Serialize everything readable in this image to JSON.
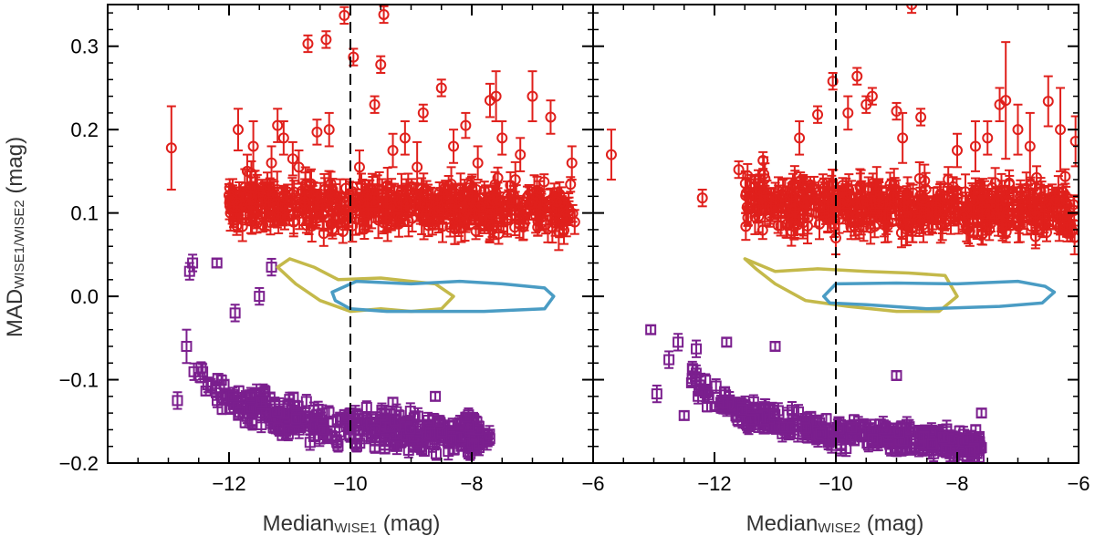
{
  "chart_data": {
    "type": "scatter",
    "layout": "two-panel",
    "ylabel": {
      "main": "MAD",
      "sub": "WISE1/WISE2",
      "unit": "(mag)"
    },
    "ylim": [
      -0.2,
      0.35
    ],
    "yticks": [
      -0.2,
      -0.1,
      0.0,
      0.1,
      0.2,
      0.3
    ],
    "ytick_labels": [
      "−0.2",
      "−0.1",
      "0.0",
      "0.1",
      "0.2",
      "0.3"
    ],
    "xlim": [
      -14,
      -6
    ],
    "xticks": [
      -12,
      -10,
      -8,
      -6
    ],
    "xtick_labels": [
      "−12",
      "−10",
      "−8",
      "−6"
    ],
    "colors": {
      "red": "#e0201c",
      "purple": "#7b1f8e",
      "olive": "#c4b94a",
      "blue": "#4a9cc4"
    },
    "panels": [
      {
        "name": "WISE1",
        "xlabel": {
          "main": "Median",
          "sub": "WISE1",
          "unit": "(mag)"
        },
        "vline_x": -10,
        "red_points": [
          {
            "x": -12.95,
            "y": 0.178,
            "err": 0.05
          },
          {
            "x": -11.85,
            "y": 0.2,
            "err": 0.025
          },
          {
            "x": -11.7,
            "y": 0.15,
            "err": 0.02
          },
          {
            "x": -11.65,
            "y": 0.13,
            "err": 0.02
          },
          {
            "x": -11.6,
            "y": 0.18,
            "err": 0.03
          },
          {
            "x": -11.3,
            "y": 0.16,
            "err": 0.02
          },
          {
            "x": -11.2,
            "y": 0.205,
            "err": 0.02
          },
          {
            "x": -11.1,
            "y": 0.19,
            "err": 0.02
          },
          {
            "x": -10.95,
            "y": 0.165,
            "err": 0.02
          },
          {
            "x": -10.85,
            "y": 0.155,
            "err": 0.02
          },
          {
            "x": -10.7,
            "y": 0.303,
            "err": 0.01
          },
          {
            "x": -10.55,
            "y": 0.197,
            "err": 0.015
          },
          {
            "x": -10.4,
            "y": 0.308,
            "err": 0.01
          },
          {
            "x": -10.35,
            "y": 0.2,
            "err": 0.02
          },
          {
            "x": -10.1,
            "y": 0.337,
            "err": 0.01
          },
          {
            "x": -9.95,
            "y": 0.287,
            "err": 0.01
          },
          {
            "x": -9.85,
            "y": 0.155,
            "err": 0.02
          },
          {
            "x": -9.6,
            "y": 0.23,
            "err": 0.01
          },
          {
            "x": -9.5,
            "y": 0.278,
            "err": 0.01
          },
          {
            "x": -9.45,
            "y": 0.338,
            "err": 0.01
          },
          {
            "x": -9.3,
            "y": 0.175,
            "err": 0.02
          },
          {
            "x": -9.1,
            "y": 0.19,
            "err": 0.02
          },
          {
            "x": -8.9,
            "y": 0.155,
            "err": 0.03
          },
          {
            "x": -8.8,
            "y": 0.22,
            "err": 0.01
          },
          {
            "x": -8.5,
            "y": 0.25,
            "err": 0.01
          },
          {
            "x": -8.3,
            "y": 0.18,
            "err": 0.02
          },
          {
            "x": -8.1,
            "y": 0.205,
            "err": 0.015
          },
          {
            "x": -7.9,
            "y": 0.16,
            "err": 0.02
          },
          {
            "x": -7.7,
            "y": 0.235,
            "err": 0.02
          },
          {
            "x": -7.6,
            "y": 0.24,
            "err": 0.03
          },
          {
            "x": -7.5,
            "y": 0.19,
            "err": 0.02
          },
          {
            "x": -7.2,
            "y": 0.17,
            "err": 0.02
          },
          {
            "x": -7.0,
            "y": 0.24,
            "err": 0.03
          },
          {
            "x": -6.7,
            "y": 0.215,
            "err": 0.02
          },
          {
            "x": -6.35,
            "y": 0.16,
            "err": 0.02
          }
        ],
        "purple_points": [
          {
            "x": -12.85,
            "y": -0.125,
            "err": 0.01
          },
          {
            "x": -12.7,
            "y": -0.06,
            "err": 0.02
          },
          {
            "x": -12.65,
            "y": 0.03,
            "err": 0.01
          },
          {
            "x": -12.6,
            "y": 0.04,
            "err": 0.01
          },
          {
            "x": -12.2,
            "y": 0.04,
            "err": 0.005
          },
          {
            "x": -11.9,
            "y": -0.02,
            "err": 0.01
          },
          {
            "x": -11.5,
            "y": 0.0,
            "err": 0.01
          },
          {
            "x": -11.3,
            "y": 0.035,
            "err": 0.01
          },
          {
            "x": -9.3,
            "y": -0.127,
            "err": 0.005
          },
          {
            "x": -8.6,
            "y": -0.12,
            "err": 0.005
          },
          {
            "x": -8.1,
            "y": -0.145,
            "err": 0.005
          }
        ],
        "red_cloud": {
          "x_range": [
            -12.0,
            -6.3
          ],
          "y_center": 0.112,
          "y_spread": 0.03
        },
        "purple_cloud": {
          "x_range": [
            -12.6,
            -7.7
          ],
          "y_center": -0.12,
          "y_spread": 0.06
        },
        "contour_olive": [
          [
            -11.0,
            0.045
          ],
          [
            -10.6,
            0.035
          ],
          [
            -10.2,
            0.02
          ],
          [
            -9.5,
            0.022
          ],
          [
            -9.0,
            0.018
          ],
          [
            -8.6,
            0.015
          ],
          [
            -8.3,
            0.0
          ],
          [
            -8.5,
            -0.015
          ],
          [
            -9.0,
            -0.018
          ],
          [
            -9.5,
            -0.015
          ],
          [
            -10.0,
            -0.018
          ],
          [
            -10.5,
            -0.005
          ],
          [
            -10.9,
            0.015
          ],
          [
            -11.2,
            0.035
          ]
        ],
        "contour_blue": [
          [
            -10.3,
            0.005
          ],
          [
            -9.9,
            0.018
          ],
          [
            -9.0,
            0.015
          ],
          [
            -8.2,
            0.018
          ],
          [
            -7.5,
            0.015
          ],
          [
            -6.8,
            0.01
          ],
          [
            -6.65,
            0.0
          ],
          [
            -6.8,
            -0.015
          ],
          [
            -7.8,
            -0.018
          ],
          [
            -8.7,
            -0.018
          ],
          [
            -9.4,
            -0.018
          ],
          [
            -10.0,
            -0.015
          ],
          [
            -10.25,
            -0.005
          ]
        ]
      },
      {
        "name": "WISE2",
        "xlabel": {
          "main": "Median",
          "sub": "WISE2",
          "unit": "(mag)"
        },
        "vline_x": -10,
        "red_points": [
          {
            "x": -13.7,
            "y": 0.17,
            "err": 0.03
          },
          {
            "x": -12.2,
            "y": 0.118,
            "err": 0.01
          },
          {
            "x": -11.6,
            "y": 0.152,
            "err": 0.01
          },
          {
            "x": -11.2,
            "y": 0.163,
            "err": 0.01
          },
          {
            "x": -10.6,
            "y": 0.19,
            "err": 0.02
          },
          {
            "x": -10.3,
            "y": 0.218,
            "err": 0.01
          },
          {
            "x": -10.05,
            "y": 0.258,
            "err": 0.01
          },
          {
            "x": -9.8,
            "y": 0.22,
            "err": 0.02
          },
          {
            "x": -9.65,
            "y": 0.264,
            "err": 0.01
          },
          {
            "x": -9.5,
            "y": 0.23,
            "err": 0.01
          },
          {
            "x": -9.4,
            "y": 0.24,
            "err": 0.01
          },
          {
            "x": -9.0,
            "y": 0.222,
            "err": 0.01
          },
          {
            "x": -8.9,
            "y": 0.19,
            "err": 0.03
          },
          {
            "x": -8.75,
            "y": 0.35,
            "err": 0.01
          },
          {
            "x": -8.6,
            "y": 0.215,
            "err": 0.01
          },
          {
            "x": -8.0,
            "y": 0.175,
            "err": 0.02
          },
          {
            "x": -7.7,
            "y": 0.18,
            "err": 0.03
          },
          {
            "x": -7.5,
            "y": 0.19,
            "err": 0.02
          },
          {
            "x": -7.3,
            "y": 0.23,
            "err": 0.02
          },
          {
            "x": -7.2,
            "y": 0.235,
            "err": 0.07
          },
          {
            "x": -7.0,
            "y": 0.2,
            "err": 0.03
          },
          {
            "x": -6.8,
            "y": 0.18,
            "err": 0.04
          },
          {
            "x": -6.5,
            "y": 0.234,
            "err": 0.03
          },
          {
            "x": -6.3,
            "y": 0.2,
            "err": 0.05
          },
          {
            "x": -6.05,
            "y": 0.186,
            "err": 0.03
          }
        ],
        "purple_points": [
          {
            "x": -13.05,
            "y": -0.04,
            "err": 0.005
          },
          {
            "x": -12.95,
            "y": -0.117,
            "err": 0.01
          },
          {
            "x": -12.75,
            "y": -0.076,
            "err": 0.01
          },
          {
            "x": -12.6,
            "y": -0.055,
            "err": 0.01
          },
          {
            "x": -12.5,
            "y": -0.143,
            "err": 0.005
          },
          {
            "x": -12.3,
            "y": -0.063,
            "err": 0.01
          },
          {
            "x": -11.8,
            "y": -0.055,
            "err": 0.005
          },
          {
            "x": -11.0,
            "y": -0.06,
            "err": 0.005
          },
          {
            "x": -9.0,
            "y": -0.095,
            "err": 0.005
          },
          {
            "x": -7.6,
            "y": -0.14,
            "err": 0.005
          }
        ],
        "red_cloud": {
          "x_range": [
            -11.5,
            -6.05
          ],
          "y_center": 0.112,
          "y_spread": 0.032
        },
        "purple_cloud": {
          "x_range": [
            -12.4,
            -7.6
          ],
          "y_center": -0.128,
          "y_spread": 0.045
        },
        "contour_olive": [
          [
            -11.5,
            0.045
          ],
          [
            -11.0,
            0.03
          ],
          [
            -10.3,
            0.033
          ],
          [
            -9.5,
            0.03
          ],
          [
            -8.8,
            0.028
          ],
          [
            -8.2,
            0.025
          ],
          [
            -8.0,
            0.0
          ],
          [
            -8.3,
            -0.018
          ],
          [
            -9.0,
            -0.018
          ],
          [
            -9.8,
            -0.012
          ],
          [
            -10.5,
            -0.005
          ],
          [
            -11.0,
            0.015
          ],
          [
            -11.3,
            0.032
          ]
        ],
        "contour_blue": [
          [
            -10.2,
            0.0
          ],
          [
            -10.0,
            0.015
          ],
          [
            -9.0,
            0.016
          ],
          [
            -8.0,
            0.015
          ],
          [
            -7.0,
            0.018
          ],
          [
            -6.55,
            0.012
          ],
          [
            -6.4,
            0.005
          ],
          [
            -6.6,
            -0.008
          ],
          [
            -7.3,
            -0.012
          ],
          [
            -8.5,
            -0.015
          ],
          [
            -9.5,
            -0.01
          ],
          [
            -10.1,
            -0.008
          ]
        ]
      }
    ]
  }
}
